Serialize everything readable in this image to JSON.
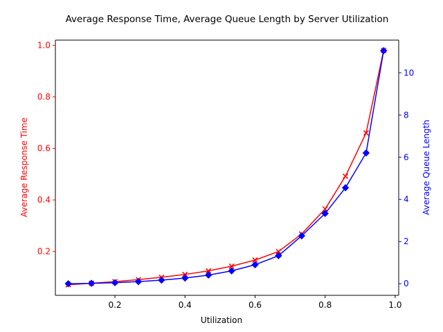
{
  "chart_data": {
    "type": "line",
    "title": "Average Response Time, Average Queue Length by Server Utilization",
    "xlabel": "Utilization",
    "ylabel": "Average Response Time",
    "y2label": "Average Queue Length",
    "xlim": [
      0.03,
      1.01
    ],
    "ylim": [
      0.03,
      1.02
    ],
    "y2lim": [
      -0.55,
      11.55
    ],
    "x_ticks": [
      0.2,
      0.4,
      0.6,
      0.8,
      1.0
    ],
    "x_tick_labels": [
      "0.2",
      "0.4",
      "0.6",
      "0.8",
      "1.0"
    ],
    "y_ticks": [
      0.2,
      0.4,
      0.6,
      0.8,
      1.0
    ],
    "y_tick_labels": [
      "0.2",
      "0.4",
      "0.6",
      "0.8",
      "1.0"
    ],
    "y2_ticks": [
      0,
      2,
      4,
      6,
      8,
      10
    ],
    "y2_tick_labels": [
      "0",
      "2",
      "4",
      "6",
      "8",
      "10"
    ],
    "x": [
      0.067,
      0.133,
      0.2,
      0.267,
      0.333,
      0.4,
      0.467,
      0.533,
      0.6,
      0.667,
      0.733,
      0.8,
      0.858,
      0.917,
      0.967
    ],
    "series": [
      {
        "axis": "left",
        "color": "#ff0000",
        "marker": "x",
        "values": [
          0.071,
          0.077,
          0.083,
          0.091,
          0.1,
          0.111,
          0.125,
          0.143,
          0.167,
          0.2,
          0.268,
          0.365,
          0.492,
          0.66,
          0.98
        ]
      },
      {
        "axis": "right",
        "color": "#0000ff",
        "marker": "diamond",
        "values": [
          0.0,
          0.02,
          0.05,
          0.1,
          0.17,
          0.27,
          0.41,
          0.61,
          0.9,
          1.33,
          2.27,
          3.33,
          4.55,
          6.2,
          11.05
        ]
      }
    ],
    "grid": false,
    "legend": "none",
    "left_axis_color": "#ff0000",
    "right_axis_color": "#0000ff"
  }
}
